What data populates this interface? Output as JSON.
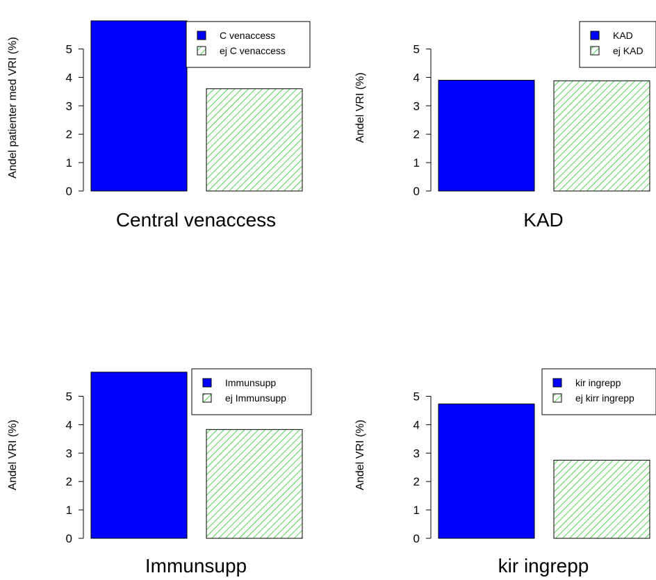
{
  "colors": {
    "blue_fill": "#0000ff",
    "hatch_bg": "#ffffff",
    "hatch_line": "#00c800",
    "stroke": "#000000"
  },
  "chart_data": [
    {
      "type": "bar",
      "categories": [
        "C venaccess",
        "ej C venaccess"
      ],
      "values": [
        6.0,
        3.6
      ],
      "ylabel": "Andel patienter med VRI (%)",
      "xlabel": "Central venaccess",
      "yticks": [
        0,
        1,
        2,
        3,
        4,
        5
      ],
      "legend": [
        "C venaccess",
        "ej C venaccess"
      ],
      "legend_position": "top-right"
    },
    {
      "type": "bar",
      "categories": [
        "KAD",
        "ej KAD"
      ],
      "values": [
        3.9,
        3.88
      ],
      "ylabel": "Andel VRI (%)",
      "xlabel": "KAD",
      "yticks": [
        0,
        1,
        2,
        3,
        4,
        5
      ],
      "legend": [
        "KAD",
        "ej KAD"
      ],
      "legend_position": "top-right"
    },
    {
      "type": "bar",
      "categories": [
        "Immunsupp",
        "ej Immunsupp"
      ],
      "values": [
        5.85,
        3.83
      ],
      "ylabel": "Andel VRI (%)",
      "xlabel": "Immunsupp",
      "yticks": [
        0,
        1,
        2,
        3,
        4,
        5
      ],
      "legend": [
        "Immunsupp",
        "ej Immunsupp"
      ],
      "legend_position": "top-right"
    },
    {
      "type": "bar",
      "categories": [
        "kir ingrepp",
        "ej kirr ingrepp"
      ],
      "values": [
        4.73,
        2.75
      ],
      "ylabel": "Andel VRI (%)",
      "xlabel": "kir ingrepp",
      "yticks": [
        0,
        1,
        2,
        3,
        4,
        5
      ],
      "legend": [
        "kir ingrepp",
        "ej kirr ingrepp"
      ],
      "legend_position": "top-right"
    }
  ]
}
